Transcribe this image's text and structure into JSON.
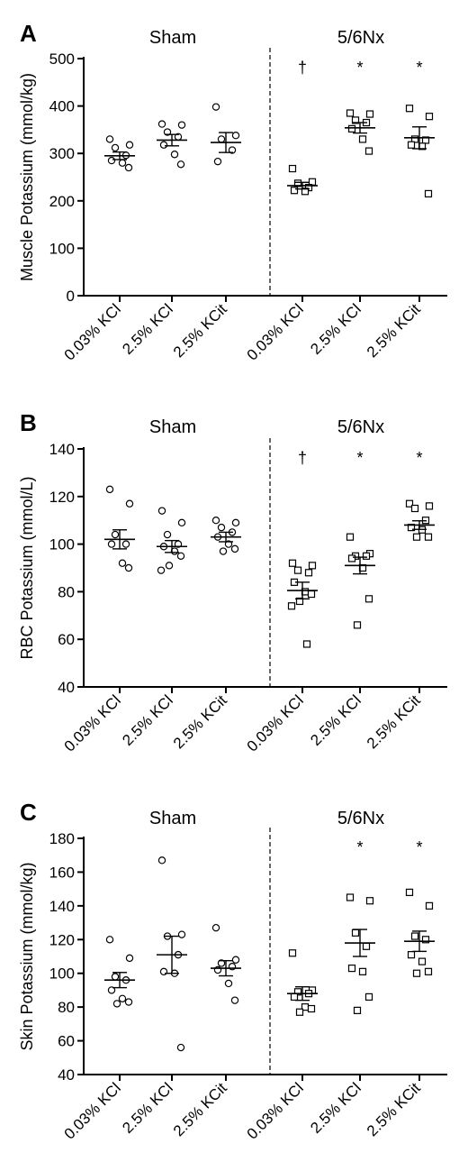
{
  "chart_data": [
    {
      "type": "scatter",
      "panel": "A",
      "ylabel": "Muscle Potassium (mmol/kg)",
      "ylim": [
        0,
        500
      ],
      "yticks": [
        "0",
        "100",
        "200",
        "300",
        "400",
        "500"
      ],
      "groups": [
        "Sham",
        "5/6Nx"
      ],
      "categories": [
        "0.03% KCl",
        "2.5% KCl",
        "2.5% KCit",
        "0.03% KCl",
        "2.5% KCl",
        "2.5% KCit"
      ],
      "marker": [
        "circle",
        "circle",
        "circle",
        "square",
        "square",
        "square"
      ],
      "significance": [
        "",
        "",
        "",
        "†",
        "*",
        "*"
      ],
      "series": [
        {
          "points": [
            330,
            318,
            312,
            296,
            285,
            280,
            270
          ],
          "mean": 295,
          "sem": 8
        },
        {
          "points": [
            362,
            360,
            345,
            335,
            318,
            298,
            277
          ],
          "mean": 328,
          "sem": 12
        },
        {
          "points": [
            398,
            338,
            330,
            307,
            283
          ],
          "mean": 323,
          "sem": 21
        },
        {
          "points": [
            268,
            240,
            237,
            228,
            222,
            220
          ],
          "mean": 232,
          "sem": 7
        },
        {
          "points": [
            385,
            383,
            370,
            365,
            352,
            330,
            305
          ],
          "mean": 354,
          "sem": 11
        },
        {
          "points": [
            395,
            378,
            330,
            328,
            318,
            315,
            215
          ],
          "mean": 333,
          "sem": 23
        }
      ]
    },
    {
      "type": "scatter",
      "panel": "B",
      "ylabel": "RBC Potassium (mmol/L)",
      "ylim": [
        40,
        140
      ],
      "yticks": [
        "40",
        "60",
        "80",
        "100",
        "120",
        "140"
      ],
      "groups": [
        "Sham",
        "5/6Nx"
      ],
      "categories": [
        "0.03% KCl",
        "2.5% KCl",
        "2.5% KCit",
        "0.03% KCl",
        "2.5% KCl",
        "2.5% KCit"
      ],
      "marker": [
        "circle",
        "circle",
        "circle",
        "square",
        "square",
        "square"
      ],
      "significance": [
        "",
        "",
        "",
        "†",
        "*",
        "*"
      ],
      "series": [
        {
          "points": [
            123,
            117,
            104,
            100,
            100,
            92,
            90
          ],
          "mean": 102,
          "sem": 4
        },
        {
          "points": [
            114,
            109,
            104,
            100,
            99,
            97,
            95,
            91,
            89
          ],
          "mean": 99,
          "sem": 2.5
        },
        {
          "points": [
            110,
            109,
            107,
            105,
            103,
            100,
            98,
            97
          ],
          "mean": 103,
          "sem": 2
        },
        {
          "points": [
            92,
            91,
            89,
            88,
            84,
            80,
            79,
            76,
            74,
            58
          ],
          "mean": 80.5,
          "sem": 3.5
        },
        {
          "points": [
            103,
            96,
            95,
            95,
            94,
            90,
            77,
            66
          ],
          "mean": 91,
          "sem": 3.5
        },
        {
          "points": [
            117,
            116,
            115,
            110,
            107,
            106,
            103,
            103
          ],
          "mean": 108,
          "sem": 1.8
        }
      ]
    },
    {
      "type": "scatter",
      "panel": "C",
      "ylabel": "Skin Potassium (mmol/kg)",
      "ylim": [
        40,
        180
      ],
      "yticks": [
        "40",
        "60",
        "80",
        "100",
        "120",
        "140",
        "160",
        "180"
      ],
      "groups": [
        "Sham",
        "5/6Nx"
      ],
      "categories": [
        "0.03% KCl",
        "2.5% KCl",
        "2.5% KCit",
        "0.03% KCl",
        "2.5% KCl",
        "2.5% KCit"
      ],
      "marker": [
        "circle",
        "circle",
        "circle",
        "square",
        "square",
        "square"
      ],
      "significance": [
        "",
        "",
        "",
        "",
        "*",
        "*"
      ],
      "series": [
        {
          "points": [
            120,
            109,
            98,
            96,
            90,
            85,
            83,
            82
          ],
          "mean": 96,
          "sem": 4.5
        },
        {
          "points": [
            167,
            123,
            122,
            111,
            101,
            100,
            56
          ],
          "mean": 111,
          "sem": 11
        },
        {
          "points": [
            127,
            108,
            106,
            104,
            102,
            94,
            84
          ],
          "mean": 103,
          "sem": 4.5
        },
        {
          "points": [
            112,
            90,
            89,
            88,
            86,
            80,
            79,
            77
          ],
          "mean": 88,
          "sem": 4
        },
        {
          "points": [
            145,
            143,
            124,
            116,
            103,
            101,
            86,
            78
          ],
          "mean": 118,
          "sem": 8
        },
        {
          "points": [
            148,
            140,
            122,
            120,
            111,
            107,
            101,
            100
          ],
          "mean": 119,
          "sem": 6
        }
      ]
    }
  ]
}
